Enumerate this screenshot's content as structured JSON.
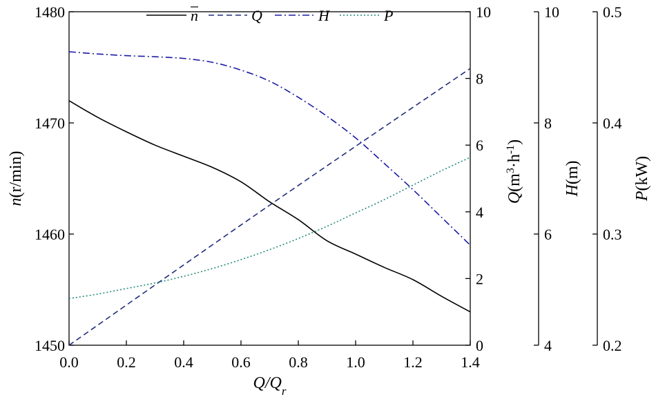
{
  "chart_data": {
    "type": "line",
    "x_label": {
      "main": "Q",
      "sub": "r",
      "sep": "/"
    },
    "x_ticks": [
      "0.0",
      "0.2",
      "0.4",
      "0.6",
      "0.8",
      "1.0",
      "1.2",
      "1.4"
    ],
    "xlim": [
      0,
      1.4
    ],
    "axes": {
      "n": {
        "label_var": "n",
        "label_unit": "(r/min)",
        "lim": [
          1450,
          1480
        ],
        "ticks": [
          "1450",
          "1460",
          "1470",
          "1480"
        ]
      },
      "Q": {
        "label_var": "Q",
        "label_unit_pre": "(m",
        "label_sup1": "3",
        "label_mid": "·h",
        "label_sup2": "-1",
        "label_unit_post": ")",
        "lim": [
          0,
          10
        ],
        "ticks": [
          "0",
          "2",
          "4",
          "6",
          "8",
          "10"
        ]
      },
      "H": {
        "label_var": "H",
        "label_unit": "(m)",
        "lim": [
          4,
          10
        ],
        "ticks": [
          "4",
          "6",
          "8",
          "10"
        ]
      },
      "P": {
        "label_var": "P",
        "label_unit": "(kW)",
        "lim": [
          0.2,
          0.5
        ],
        "ticks": [
          "0.2",
          "0.3",
          "0.4",
          "0.5"
        ]
      }
    },
    "legend": {
      "placement": "top",
      "entries": [
        "n",
        "Q",
        "H",
        "P"
      ]
    },
    "series": [
      {
        "name": "n",
        "axis": "n",
        "color": "#000000",
        "dash": "",
        "x": [
          0,
          0.1,
          0.2,
          0.3,
          0.4,
          0.5,
          0.6,
          0.7,
          0.8,
          0.9,
          1.0,
          1.1,
          1.2,
          1.3,
          1.4
        ],
        "y": [
          1472,
          1470.5,
          1469.2,
          1468,
          1467,
          1466,
          1464.7,
          1462.9,
          1461.3,
          1459.4,
          1458.2,
          1457,
          1455.9,
          1454.4,
          1453
        ]
      },
      {
        "name": "Q",
        "axis": "Q",
        "color": "#1f2d7a",
        "dash": "8,5",
        "x": [
          0,
          0.7,
          1.4
        ],
        "y": [
          0,
          4.2,
          8.3
        ]
      },
      {
        "name": "H",
        "axis": "H",
        "color": "#1a1aa6",
        "dash": "10,4,2,4",
        "x": [
          0,
          0.1,
          0.2,
          0.3,
          0.4,
          0.5,
          0.6,
          0.7,
          0.8,
          0.9,
          1.0,
          1.1,
          1.2,
          1.3,
          1.4
        ],
        "y": [
          9.28,
          9.24,
          9.21,
          9.19,
          9.16,
          9.09,
          8.95,
          8.75,
          8.46,
          8.12,
          7.73,
          7.27,
          6.8,
          6.3,
          5.8
        ]
      },
      {
        "name": "P",
        "axis": "P",
        "color": "#1f8a7a",
        "dash": "2,3",
        "x": [
          0,
          0.1,
          0.2,
          0.3,
          0.4,
          0.5,
          0.6,
          0.7,
          0.8,
          0.9,
          1.0,
          1.1,
          1.2,
          1.3,
          1.4
        ],
        "y": [
          0.242,
          0.246,
          0.251,
          0.256,
          0.262,
          0.269,
          0.277,
          0.286,
          0.296,
          0.307,
          0.319,
          0.331,
          0.344,
          0.357,
          0.369
        ]
      }
    ]
  }
}
